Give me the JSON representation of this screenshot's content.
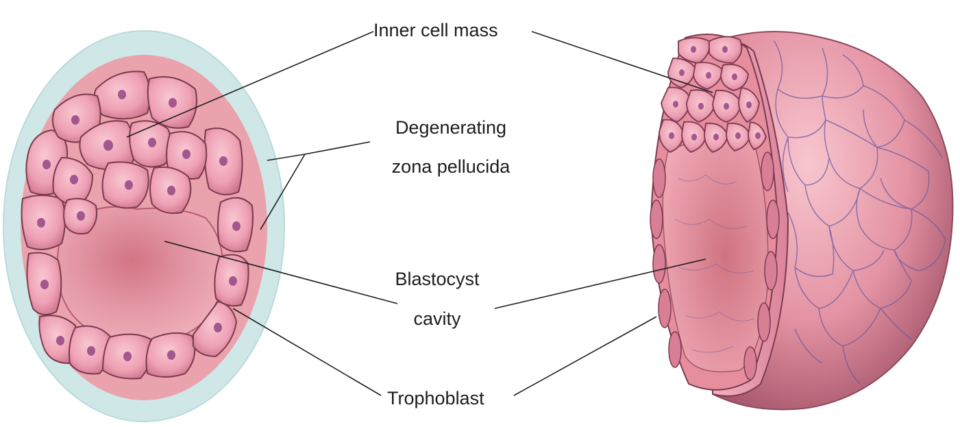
{
  "labels": {
    "inner_cell_mass": "Inner cell mass",
    "zona_line1": "Degenerating",
    "zona_line2": "zona pellucida",
    "cavity_line1": "Blastocyst",
    "cavity_line2": "cavity",
    "trophoblast": "Trophoblast"
  },
  "colors": {
    "zona": "#cde8e8",
    "cytoplasm": "#e9a0ad",
    "cell_fill": "#ec9fb3",
    "cell_stroke": "#7a3a4e",
    "nucleus": "#a4578e",
    "cavity": "#e58f9e",
    "surface_cell": "#ef9db2",
    "surface_line": "#6c5ba0",
    "leader_line": "#1e1e1e"
  }
}
